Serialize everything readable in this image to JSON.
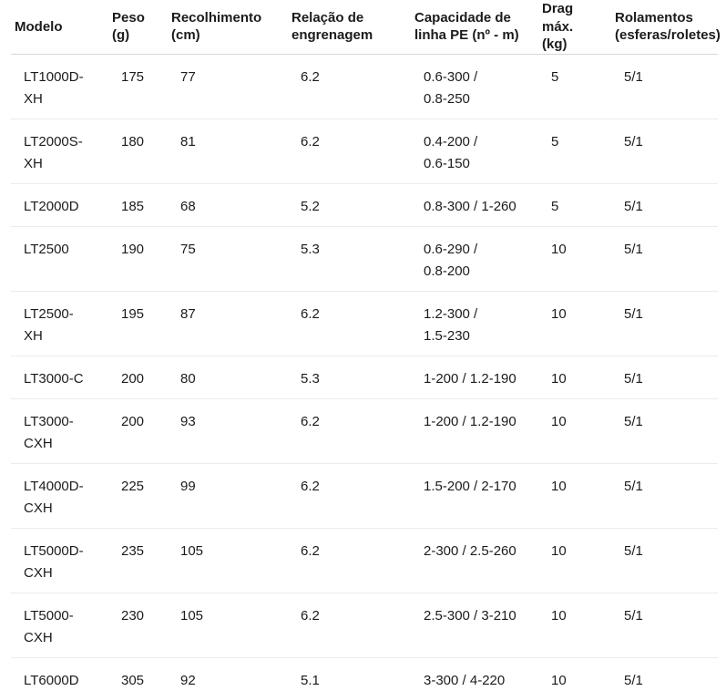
{
  "table": {
    "fields": [
      "modelo",
      "peso_g",
      "recolhimento_cm",
      "relacao_engrenagem",
      "capacidade_linha_pe",
      "drag_max_kg",
      "rolamentos"
    ],
    "columns": [
      {
        "label": "Modelo"
      },
      {
        "label": "Peso\n(g)"
      },
      {
        "label": "Recolhimento\n(cm)"
      },
      {
        "label": "Relação de\nengrenagem"
      },
      {
        "label": "Capacidade de\nlinha PE (nº - m)"
      },
      {
        "label": "Drag\nmáx.\n(kg)"
      },
      {
        "label": "Rolamentos\n(esferas/roletes)"
      }
    ],
    "rows": [
      {
        "modelo": "LT1000D-XH",
        "peso_g": "175",
        "recolhimento_cm": "77",
        "relacao_engrenagem": "6.2",
        "capacidade_linha_pe": "0.6-300 /\n0.8-250",
        "drag_max_kg": "5",
        "rolamentos": "5/1"
      },
      {
        "modelo": "LT2000S-XH",
        "peso_g": "180",
        "recolhimento_cm": "81",
        "relacao_engrenagem": "6.2",
        "capacidade_linha_pe": "0.4-200 /\n0.6-150",
        "drag_max_kg": "5",
        "rolamentos": "5/1"
      },
      {
        "modelo": "LT2000D",
        "peso_g": "185",
        "recolhimento_cm": "68",
        "relacao_engrenagem": "5.2",
        "capacidade_linha_pe": "0.8-300 / 1-260",
        "drag_max_kg": "5",
        "rolamentos": "5/1"
      },
      {
        "modelo": "LT2500",
        "peso_g": "190",
        "recolhimento_cm": "75",
        "relacao_engrenagem": "5.3",
        "capacidade_linha_pe": "0.6-290 /\n0.8-200",
        "drag_max_kg": "10",
        "rolamentos": "5/1"
      },
      {
        "modelo": "LT2500-XH",
        "peso_g": "195",
        "recolhimento_cm": "87",
        "relacao_engrenagem": "6.2",
        "capacidade_linha_pe": "1.2-300 /\n1.5-230",
        "drag_max_kg": "10",
        "rolamentos": "5/1"
      },
      {
        "modelo": "LT3000-C",
        "peso_g": "200",
        "recolhimento_cm": "80",
        "relacao_engrenagem": "5.3",
        "capacidade_linha_pe": "1-200 / 1.2-190",
        "drag_max_kg": "10",
        "rolamentos": "5/1"
      },
      {
        "modelo": "LT3000-CXH",
        "peso_g": "200",
        "recolhimento_cm": "93",
        "relacao_engrenagem": "6.2",
        "capacidade_linha_pe": "1-200 / 1.2-190",
        "drag_max_kg": "10",
        "rolamentos": "5/1"
      },
      {
        "modelo": "LT4000D-CXH",
        "peso_g": "225",
        "recolhimento_cm": "99",
        "relacao_engrenagem": "6.2",
        "capacidade_linha_pe": "1.5-200 / 2-170",
        "drag_max_kg": "10",
        "rolamentos": "5/1"
      },
      {
        "modelo": "LT5000D-CXH",
        "peso_g": "235",
        "recolhimento_cm": "105",
        "relacao_engrenagem": "6.2",
        "capacidade_linha_pe": "2-300 / 2.5-260",
        "drag_max_kg": "10",
        "rolamentos": "5/1"
      },
      {
        "modelo": "LT5000-CXH",
        "peso_g": "230",
        "recolhimento_cm": "105",
        "relacao_engrenagem": "6.2",
        "capacidade_linha_pe": "2.5-300 / 3-210",
        "drag_max_kg": "10",
        "rolamentos": "5/1"
      },
      {
        "modelo": "LT6000D",
        "peso_g": "305",
        "recolhimento_cm": "92",
        "relacao_engrenagem": "5.1",
        "capacidade_linha_pe": "3-300 / 4-220",
        "drag_max_kg": "10",
        "rolamentos": "5/1"
      }
    ]
  },
  "colors": {
    "text": "#1b1b1b",
    "header_border": "#d6d6d6",
    "row_border": "#ebebeb",
    "background": "#ffffff"
  }
}
